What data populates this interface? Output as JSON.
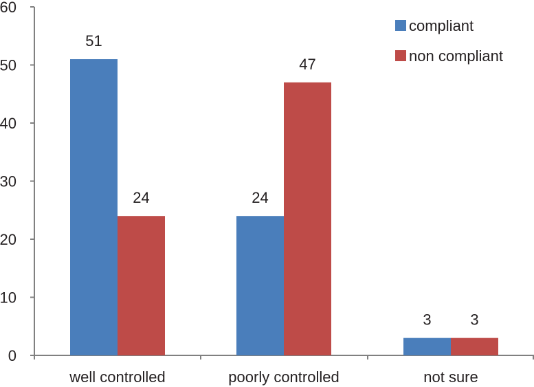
{
  "chart_data": {
    "type": "bar",
    "categories": [
      "well controlled",
      "poorly controlled",
      "not sure"
    ],
    "series": [
      {
        "name": "compliant",
        "values": [
          51,
          24,
          3
        ],
        "color": "#4a7ebb"
      },
      {
        "name": "non compliant",
        "values": [
          24,
          47,
          3
        ],
        "color": "#be4b48"
      }
    ],
    "ylim": [
      0,
      60
    ],
    "yticks": [
      0,
      10,
      20,
      30,
      40,
      50,
      60
    ],
    "data_labels": true,
    "grid": false,
    "legend_position": "top-right",
    "axis_color": "#808080"
  }
}
